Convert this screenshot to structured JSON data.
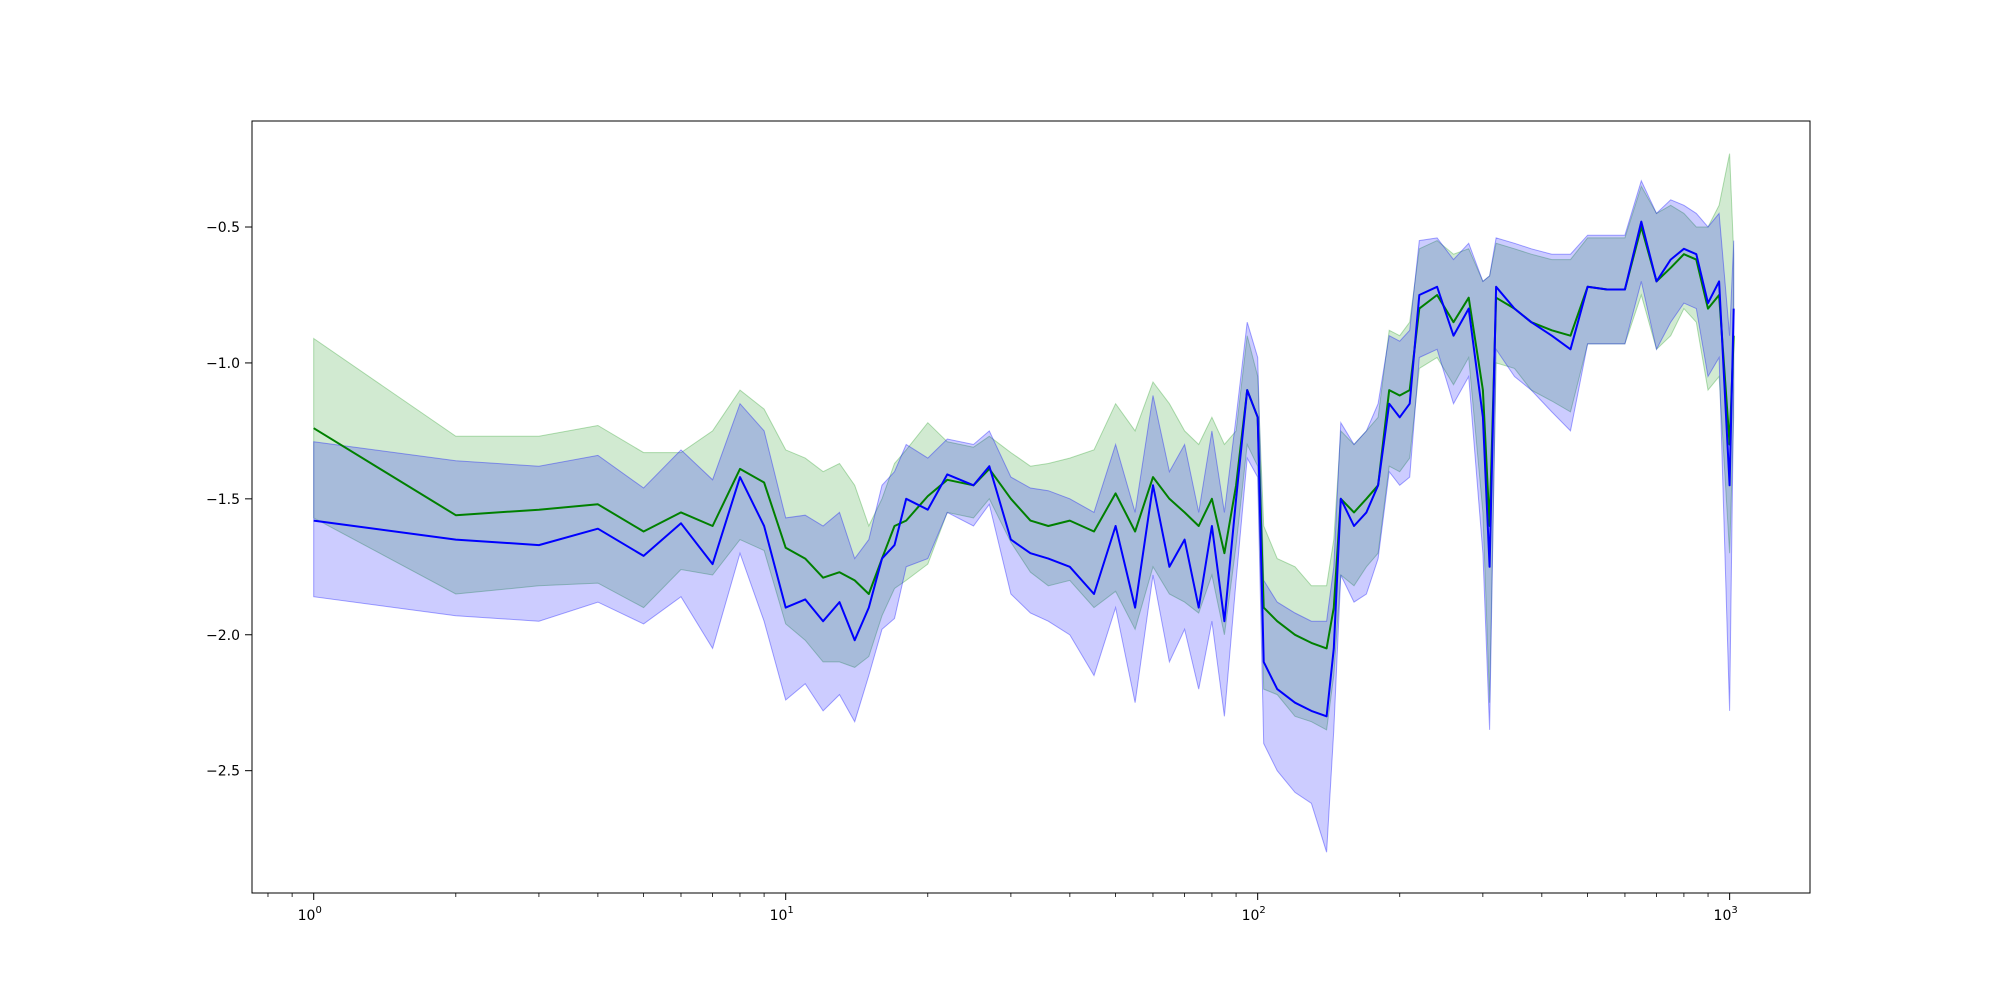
{
  "chart_data": {
    "type": "line",
    "title": "",
    "xlabel": "",
    "ylabel": "",
    "xscale": "log",
    "xlim": [
      0.74,
      1480
    ],
    "ylim": [
      -2.95,
      -0.11
    ],
    "grid": false,
    "legend": "none",
    "x_ticks": [
      {
        "value": 1,
        "base": "10",
        "exp": "0"
      },
      {
        "value": 10,
        "base": "10",
        "exp": "1"
      },
      {
        "value": 100,
        "base": "10",
        "exp": "2"
      },
      {
        "value": 1000,
        "base": "10",
        "exp": "3"
      }
    ],
    "y_ticks": [
      {
        "value": -0.5,
        "label": "−0.5"
      },
      {
        "value": -1.0,
        "label": "−1.0"
      },
      {
        "value": -1.5,
        "label": "−1.5"
      },
      {
        "value": -2.0,
        "label": "−2.0"
      },
      {
        "value": -2.5,
        "label": "−2.5"
      }
    ],
    "series": [
      {
        "color": "#008000",
        "band_color": "#2ca02c",
        "x": [
          1,
          2,
          3,
          4,
          5,
          6,
          7,
          8,
          9,
          10,
          11,
          12,
          13,
          14,
          15,
          16,
          17,
          18,
          20,
          22,
          25,
          27,
          30,
          33,
          36,
          40,
          45,
          50,
          55,
          60,
          65,
          70,
          75,
          80,
          85,
          90,
          95,
          100,
          103,
          110,
          120,
          130,
          140,
          145,
          150,
          160,
          170,
          180,
          190,
          200,
          210,
          220,
          240,
          260,
          280,
          300,
          310,
          320,
          350,
          380,
          420,
          460,
          500,
          550,
          600,
          650,
          700,
          750,
          800,
          850,
          900,
          950,
          1000,
          1020
        ],
        "y": [
          -1.24,
          -1.56,
          -1.54,
          -1.52,
          -1.62,
          -1.55,
          -1.6,
          -1.39,
          -1.44,
          -1.68,
          -1.72,
          -1.79,
          -1.77,
          -1.8,
          -1.85,
          -1.72,
          -1.6,
          -1.58,
          -1.49,
          -1.43,
          -1.45,
          -1.39,
          -1.5,
          -1.58,
          -1.6,
          -1.58,
          -1.62,
          -1.48,
          -1.62,
          -1.42,
          -1.5,
          -1.55,
          -1.6,
          -1.5,
          -1.7,
          -1.45,
          -1.1,
          -1.2,
          -1.9,
          -1.95,
          -2.0,
          -2.03,
          -2.05,
          -1.9,
          -1.5,
          -1.55,
          -1.5,
          -1.45,
          -1.1,
          -1.12,
          -1.1,
          -0.8,
          -0.75,
          -0.85,
          -0.76,
          -1.1,
          -1.6,
          -0.76,
          -0.8,
          -0.85,
          -0.88,
          -0.9,
          -0.72,
          -0.73,
          -0.73,
          -0.5,
          -0.7,
          -0.65,
          -0.6,
          -0.62,
          -0.8,
          -0.75,
          -1.3,
          -0.9
        ],
        "upper": [
          -0.91,
          -1.27,
          -1.27,
          -1.23,
          -1.33,
          -1.33,
          -1.25,
          -1.1,
          -1.17,
          -1.32,
          -1.35,
          -1.4,
          -1.37,
          -1.45,
          -1.6,
          -1.5,
          -1.37,
          -1.32,
          -1.22,
          -1.29,
          -1.31,
          -1.27,
          -1.33,
          -1.38,
          -1.37,
          -1.35,
          -1.32,
          -1.15,
          -1.25,
          -1.07,
          -1.15,
          -1.25,
          -1.3,
          -1.2,
          -1.3,
          -1.25,
          -0.9,
          -1.05,
          -1.6,
          -1.72,
          -1.75,
          -1.82,
          -1.82,
          -1.65,
          -1.25,
          -1.3,
          -1.25,
          -1.2,
          -0.88,
          -0.9,
          -0.85,
          -0.58,
          -0.55,
          -0.6,
          -0.58,
          -0.7,
          -0.68,
          -0.56,
          -0.58,
          -0.6,
          -0.62,
          -0.62,
          -0.54,
          -0.54,
          -0.54,
          -0.35,
          -0.45,
          -0.42,
          -0.45,
          -0.5,
          -0.5,
          -0.42,
          -0.23,
          -0.6
        ],
        "lower": [
          -1.57,
          -1.85,
          -1.82,
          -1.81,
          -1.9,
          -1.76,
          -1.78,
          -1.65,
          -1.69,
          -1.96,
          -2.02,
          -2.1,
          -2.1,
          -2.12,
          -2.08,
          -1.93,
          -1.83,
          -1.8,
          -1.74,
          -1.55,
          -1.57,
          -1.5,
          -1.66,
          -1.77,
          -1.82,
          -1.8,
          -1.9,
          -1.84,
          -1.98,
          -1.75,
          -1.85,
          -1.88,
          -1.92,
          -1.78,
          -2.0,
          -1.67,
          -1.3,
          -1.38,
          -2.2,
          -2.22,
          -2.3,
          -2.32,
          -2.35,
          -2.15,
          -1.78,
          -1.82,
          -1.75,
          -1.7,
          -1.38,
          -1.4,
          -1.35,
          -1.02,
          -0.98,
          -1.08,
          -0.98,
          -1.55,
          -2.25,
          -1.0,
          -1.02,
          -1.1,
          -1.14,
          -1.18,
          -0.93,
          -0.93,
          -0.93,
          -0.75,
          -0.95,
          -0.9,
          -0.8,
          -0.85,
          -1.1,
          -1.05,
          -1.7,
          -1.2
        ]
      },
      {
        "color": "#0000ff",
        "band_color": "#0000ff",
        "x": [
          1,
          2,
          3,
          4,
          5,
          6,
          7,
          8,
          9,
          10,
          11,
          12,
          13,
          14,
          15,
          16,
          17,
          18,
          20,
          22,
          25,
          27,
          30,
          33,
          36,
          40,
          45,
          50,
          55,
          60,
          65,
          70,
          75,
          80,
          85,
          90,
          95,
          100,
          103,
          110,
          120,
          130,
          140,
          145,
          150,
          160,
          170,
          180,
          190,
          200,
          210,
          220,
          240,
          260,
          280,
          300,
          310,
          320,
          350,
          380,
          420,
          460,
          500,
          550,
          600,
          650,
          700,
          750,
          800,
          850,
          900,
          950,
          1000,
          1020
        ],
        "y": [
          -1.58,
          -1.65,
          -1.67,
          -1.61,
          -1.71,
          -1.59,
          -1.74,
          -1.42,
          -1.6,
          -1.9,
          -1.87,
          -1.95,
          -1.88,
          -2.02,
          -1.9,
          -1.72,
          -1.67,
          -1.5,
          -1.54,
          -1.41,
          -1.45,
          -1.38,
          -1.65,
          -1.7,
          -1.72,
          -1.75,
          -1.85,
          -1.6,
          -1.9,
          -1.45,
          -1.75,
          -1.65,
          -1.9,
          -1.6,
          -1.95,
          -1.5,
          -1.1,
          -1.2,
          -2.1,
          -2.2,
          -2.25,
          -2.28,
          -2.3,
          -2.05,
          -1.5,
          -1.6,
          -1.55,
          -1.45,
          -1.15,
          -1.2,
          -1.15,
          -0.75,
          -0.72,
          -0.9,
          -0.8,
          -1.2,
          -1.75,
          -0.72,
          -0.8,
          -0.85,
          -0.9,
          -0.95,
          -0.72,
          -0.73,
          -0.73,
          -0.48,
          -0.7,
          -0.62,
          -0.58,
          -0.6,
          -0.78,
          -0.7,
          -1.45,
          -0.8
        ],
        "upper": [
          -1.29,
          -1.36,
          -1.38,
          -1.34,
          -1.46,
          -1.32,
          -1.43,
          -1.15,
          -1.25,
          -1.57,
          -1.56,
          -1.6,
          -1.55,
          -1.72,
          -1.65,
          -1.45,
          -1.4,
          -1.3,
          -1.35,
          -1.28,
          -1.3,
          -1.25,
          -1.42,
          -1.46,
          -1.47,
          -1.5,
          -1.55,
          -1.3,
          -1.55,
          -1.12,
          -1.4,
          -1.3,
          -1.55,
          -1.25,
          -1.55,
          -1.2,
          -0.85,
          -0.98,
          -1.8,
          -1.88,
          -1.92,
          -1.95,
          -1.95,
          -1.75,
          -1.22,
          -1.3,
          -1.25,
          -1.15,
          -0.9,
          -0.92,
          -0.88,
          -0.55,
          -0.54,
          -0.62,
          -0.56,
          -0.7,
          -0.68,
          -0.54,
          -0.56,
          -0.58,
          -0.6,
          -0.6,
          -0.53,
          -0.53,
          -0.53,
          -0.33,
          -0.45,
          -0.4,
          -0.42,
          -0.45,
          -0.5,
          -0.45,
          -0.9,
          -0.55
        ],
        "lower": [
          -1.86,
          -1.93,
          -1.95,
          -1.88,
          -1.96,
          -1.86,
          -2.05,
          -1.7,
          -1.95,
          -2.24,
          -2.18,
          -2.28,
          -2.22,
          -2.32,
          -2.15,
          -1.98,
          -1.94,
          -1.75,
          -1.72,
          -1.55,
          -1.6,
          -1.52,
          -1.85,
          -1.92,
          -1.95,
          -2.0,
          -2.15,
          -1.9,
          -2.25,
          -1.78,
          -2.1,
          -1.98,
          -2.2,
          -1.95,
          -2.3,
          -1.8,
          -1.35,
          -1.42,
          -2.4,
          -2.5,
          -2.58,
          -2.62,
          -2.8,
          -2.35,
          -1.78,
          -1.88,
          -1.85,
          -1.72,
          -1.4,
          -1.45,
          -1.42,
          -0.98,
          -0.95,
          -1.15,
          -1.05,
          -1.7,
          -2.35,
          -0.95,
          -1.05,
          -1.1,
          -1.18,
          -1.25,
          -0.93,
          -0.93,
          -0.93,
          -0.7,
          -0.95,
          -0.85,
          -0.78,
          -0.8,
          -1.05,
          -0.98,
          -2.28,
          -1.1
        ]
      }
    ]
  }
}
